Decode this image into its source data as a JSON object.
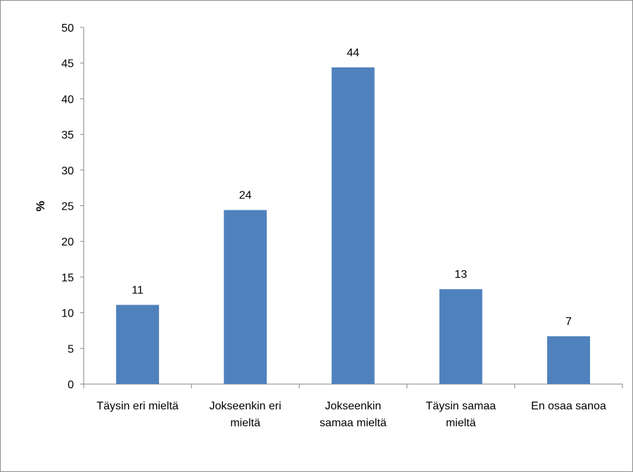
{
  "chart_data": {
    "type": "bar",
    "title": "",
    "xlabel": "",
    "ylabel": "%",
    "ylim": [
      0,
      50
    ],
    "yticks": [
      0,
      5,
      10,
      15,
      20,
      25,
      30,
      35,
      40,
      45,
      50
    ],
    "grid": false,
    "legend": "none",
    "bar_color": "#4f81bd",
    "categories": [
      [
        "Täysin eri mieltä"
      ],
      [
        "Jokseenkin eri",
        "mieltä"
      ],
      [
        "Jokseenkin",
        "samaa mieltä"
      ],
      [
        "Täysin samaa",
        "mieltä"
      ],
      [
        "En osaa sanoa"
      ]
    ],
    "values": [
      11.1,
      24.4,
      44.4,
      13.3,
      6.7
    ],
    "data_labels": [
      "11",
      "24",
      "44",
      "13",
      "7"
    ]
  }
}
